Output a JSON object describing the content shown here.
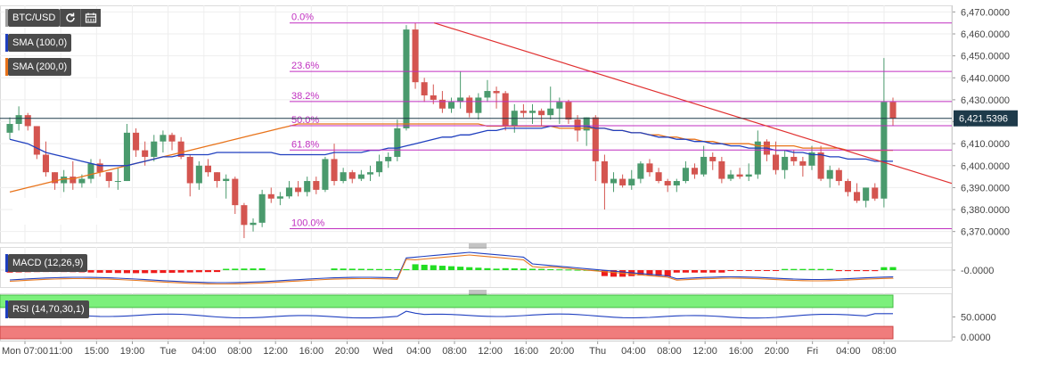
{
  "toolbar": {
    "symbol": "BTC/USD",
    "indicators": [
      {
        "label": "SMA (100,0)",
        "color": "#1f3fbf"
      },
      {
        "label": "SMA (200,0)",
        "color": "#e8731a"
      }
    ],
    "refresh_icon": "refresh-icon",
    "calendar_icon": "calendar-icon"
  },
  "sub_panels": {
    "macd_label": "MACD (12,26,9)",
    "rsi_label": "RSI (14,70,30,1)"
  },
  "chart_data": [
    {
      "type": "candlestick",
      "price_axis_labels": [
        "6,470.0000",
        "6,460.0000",
        "6,450.0000",
        "6,440.0000",
        "6,430.0000",
        "6,420.0000",
        "6,410.0000",
        "6,400.0000",
        "6,390.0000",
        "6,380.0000",
        "6,370.0000"
      ],
      "ylim": [
        6365,
        6473
      ],
      "current_price": "6,421.5396",
      "current_price_value": 6421.54,
      "x_tick_labels": [
        "Mon 07:00",
        "11:00",
        "15:00",
        "19:00",
        "Tue",
        "04:00",
        "08:00",
        "12:00",
        "16:00",
        "20:00",
        "Wed",
        "04:00",
        "08:00",
        "12:00",
        "16:00",
        "20:00",
        "Thu",
        "04:00",
        "08:00",
        "12:00",
        "16:00",
        "20:00",
        "Fri",
        "04:00",
        "08:00"
      ],
      "fibonacci_levels": [
        {
          "label": "0.0%",
          "price": 6465
        },
        {
          "label": "23.6%",
          "price": 6442.9
        },
        {
          "label": "38.2%",
          "price": 6429.2
        },
        {
          "label": "50.0%",
          "price": 6418.2
        },
        {
          "label": "61.8%",
          "price": 6407.1
        },
        {
          "label": "100.0%",
          "price": 6371.3
        }
      ],
      "trendline": [
        {
          "x": 0.4175,
          "price": 6465
        },
        {
          "x": 0.9215,
          "price": 6391
        }
      ],
      "candles": [
        {
          "o": 6415,
          "h": 6422,
          "l": 6412,
          "c": 6419
        },
        {
          "o": 6419,
          "h": 6427,
          "l": 6416,
          "c": 6423
        },
        {
          "o": 6423,
          "h": 6424,
          "l": 6416,
          "c": 6418
        },
        {
          "o": 6418,
          "h": 6418,
          "l": 6403,
          "c": 6405
        },
        {
          "o": 6405,
          "h": 6411,
          "l": 6395,
          "c": 6397
        },
        {
          "o": 6397,
          "h": 6397,
          "l": 6389,
          "c": 6392
        },
        {
          "o": 6392,
          "h": 6398,
          "l": 6388,
          "c": 6395
        },
        {
          "o": 6395,
          "h": 6402,
          "l": 6389,
          "c": 6392
        },
        {
          "o": 6392,
          "h": 6396,
          "l": 6390,
          "c": 6394
        },
        {
          "o": 6394,
          "h": 6403,
          "l": 6392,
          "c": 6401
        },
        {
          "o": 6401,
          "h": 6403,
          "l": 6395,
          "c": 6397
        },
        {
          "o": 6397,
          "h": 6397,
          "l": 6390,
          "c": 6393
        },
        {
          "o": 6393,
          "h": 6399,
          "l": 6389,
          "c": 6393
        },
        {
          "o": 6393,
          "h": 6419,
          "l": 6393,
          "c": 6415
        },
        {
          "o": 6415,
          "h": 6417,
          "l": 6404,
          "c": 6407
        },
        {
          "o": 6407,
          "h": 6411,
          "l": 6400,
          "c": 6404
        },
        {
          "o": 6404,
          "h": 6414,
          "l": 6402,
          "c": 6411
        },
        {
          "o": 6411,
          "h": 6416,
          "l": 6406,
          "c": 6414
        },
        {
          "o": 6414,
          "h": 6415,
          "l": 6407,
          "c": 6411
        },
        {
          "o": 6411,
          "h": 6413,
          "l": 6403,
          "c": 6404
        },
        {
          "o": 6404,
          "h": 6405,
          "l": 6386,
          "c": 6392
        },
        {
          "o": 6392,
          "h": 6402,
          "l": 6389,
          "c": 6400
        },
        {
          "o": 6400,
          "h": 6403,
          "l": 6395,
          "c": 6397
        },
        {
          "o": 6397,
          "h": 6397,
          "l": 6390,
          "c": 6393
        },
        {
          "o": 6393,
          "h": 6396,
          "l": 6385,
          "c": 6394
        },
        {
          "o": 6394,
          "h": 6395,
          "l": 6378,
          "c": 6382
        },
        {
          "o": 6382,
          "h": 6383,
          "l": 6367,
          "c": 6373
        },
        {
          "o": 6373,
          "h": 6376,
          "l": 6370,
          "c": 6374
        },
        {
          "o": 6374,
          "h": 6389,
          "l": 6372,
          "c": 6387
        },
        {
          "o": 6387,
          "h": 6390,
          "l": 6383,
          "c": 6385
        },
        {
          "o": 6385,
          "h": 6388,
          "l": 6382,
          "c": 6386
        },
        {
          "o": 6386,
          "h": 6393,
          "l": 6385,
          "c": 6390
        },
        {
          "o": 6390,
          "h": 6393,
          "l": 6386,
          "c": 6388
        },
        {
          "o": 6388,
          "h": 6395,
          "l": 6386,
          "c": 6393
        },
        {
          "o": 6393,
          "h": 6395,
          "l": 6387,
          "c": 6389
        },
        {
          "o": 6389,
          "h": 6404,
          "l": 6388,
          "c": 6403
        },
        {
          "o": 6403,
          "h": 6410,
          "l": 6391,
          "c": 6393
        },
        {
          "o": 6393,
          "h": 6399,
          "l": 6392,
          "c": 6397
        },
        {
          "o": 6397,
          "h": 6398,
          "l": 6392,
          "c": 6394
        },
        {
          "o": 6394,
          "h": 6398,
          "l": 6393,
          "c": 6396
        },
        {
          "o": 6396,
          "h": 6400,
          "l": 6393,
          "c": 6397
        },
        {
          "o": 6397,
          "h": 6405,
          "l": 6395,
          "c": 6402
        },
        {
          "o": 6402,
          "h": 6406,
          "l": 6399,
          "c": 6404
        },
        {
          "o": 6404,
          "h": 6421,
          "l": 6402,
          "c": 6417
        },
        {
          "o": 6417,
          "h": 6464,
          "l": 6416,
          "c": 6462
        },
        {
          "o": 6462,
          "h": 6465,
          "l": 6435,
          "c": 6438
        },
        {
          "o": 6438,
          "h": 6440,
          "l": 6429,
          "c": 6432
        },
        {
          "o": 6432,
          "h": 6437,
          "l": 6428,
          "c": 6430
        },
        {
          "o": 6430,
          "h": 6434,
          "l": 6424,
          "c": 6426
        },
        {
          "o": 6426,
          "h": 6431,
          "l": 6424,
          "c": 6429
        },
        {
          "o": 6429,
          "h": 6443,
          "l": 6426,
          "c": 6431
        },
        {
          "o": 6431,
          "h": 6432,
          "l": 6422,
          "c": 6424
        },
        {
          "o": 6424,
          "h": 6433,
          "l": 6421,
          "c": 6431
        },
        {
          "o": 6431,
          "h": 6439,
          "l": 6429,
          "c": 6434
        },
        {
          "o": 6434,
          "h": 6436,
          "l": 6426,
          "c": 6433
        },
        {
          "o": 6433,
          "h": 6434,
          "l": 6416,
          "c": 6418
        },
        {
          "o": 6418,
          "h": 6428,
          "l": 6415,
          "c": 6425
        },
        {
          "o": 6425,
          "h": 6428,
          "l": 6422,
          "c": 6424
        },
        {
          "o": 6424,
          "h": 6428,
          "l": 6419,
          "c": 6425
        },
        {
          "o": 6425,
          "h": 6426,
          "l": 6418,
          "c": 6423
        },
        {
          "o": 6423,
          "h": 6436,
          "l": 6421,
          "c": 6426
        },
        {
          "o": 6426,
          "h": 6431,
          "l": 6419,
          "c": 6429
        },
        {
          "o": 6429,
          "h": 6430,
          "l": 6419,
          "c": 6421
        },
        {
          "o": 6421,
          "h": 6423,
          "l": 6411,
          "c": 6416
        },
        {
          "o": 6416,
          "h": 6422,
          "l": 6409,
          "c": 6422
        },
        {
          "o": 6422,
          "h": 6423,
          "l": 6393,
          "c": 6402
        },
        {
          "o": 6402,
          "h": 6405,
          "l": 6380,
          "c": 6392
        },
        {
          "o": 6392,
          "h": 6397,
          "l": 6388,
          "c": 6394
        },
        {
          "o": 6394,
          "h": 6396,
          "l": 6390,
          "c": 6391
        },
        {
          "o": 6391,
          "h": 6398,
          "l": 6389,
          "c": 6394
        },
        {
          "o": 6394,
          "h": 6402,
          "l": 6392,
          "c": 6401
        },
        {
          "o": 6401,
          "h": 6403,
          "l": 6395,
          "c": 6397
        },
        {
          "o": 6397,
          "h": 6399,
          "l": 6392,
          "c": 6393
        },
        {
          "o": 6393,
          "h": 6394,
          "l": 6388,
          "c": 6391
        },
        {
          "o": 6391,
          "h": 6394,
          "l": 6388,
          "c": 6393
        },
        {
          "o": 6393,
          "h": 6402,
          "l": 6392,
          "c": 6399
        },
        {
          "o": 6399,
          "h": 6401,
          "l": 6394,
          "c": 6396
        },
        {
          "o": 6396,
          "h": 6409,
          "l": 6395,
          "c": 6404
        },
        {
          "o": 6404,
          "h": 6406,
          "l": 6398,
          "c": 6402
        },
        {
          "o": 6402,
          "h": 6404,
          "l": 6392,
          "c": 6394
        },
        {
          "o": 6394,
          "h": 6398,
          "l": 6393,
          "c": 6396
        },
        {
          "o": 6396,
          "h": 6399,
          "l": 6394,
          "c": 6395
        },
        {
          "o": 6395,
          "h": 6401,
          "l": 6393,
          "c": 6396
        },
        {
          "o": 6396,
          "h": 6416,
          "l": 6394,
          "c": 6411
        },
        {
          "o": 6411,
          "h": 6412,
          "l": 6402,
          "c": 6405
        },
        {
          "o": 6405,
          "h": 6411,
          "l": 6396,
          "c": 6398
        },
        {
          "o": 6398,
          "h": 6407,
          "l": 6394,
          "c": 6404
        },
        {
          "o": 6404,
          "h": 6407,
          "l": 6400,
          "c": 6402
        },
        {
          "o": 6402,
          "h": 6404,
          "l": 6395,
          "c": 6400
        },
        {
          "o": 6400,
          "h": 6409,
          "l": 6398,
          "c": 6406
        },
        {
          "o": 6406,
          "h": 6409,
          "l": 6393,
          "c": 6394
        },
        {
          "o": 6394,
          "h": 6400,
          "l": 6390,
          "c": 6398
        },
        {
          "o": 6398,
          "h": 6399,
          "l": 6391,
          "c": 6393
        },
        {
          "o": 6393,
          "h": 6394,
          "l": 6386,
          "c": 6388
        },
        {
          "o": 6388,
          "h": 6392,
          "l": 6383,
          "c": 6384
        },
        {
          "o": 6384,
          "h": 6390,
          "l": 6381,
          "c": 6390
        },
        {
          "o": 6390,
          "h": 6392,
          "l": 6384,
          "c": 6385
        },
        {
          "o": 6385,
          "h": 6449,
          "l": 6381,
          "c": 6429
        },
        {
          "o": 6429,
          "h": 6431,
          "l": 6418,
          "c": 6421.54
        }
      ],
      "sma100": [
        6412,
        6411,
        6410,
        6408,
        6406,
        6405,
        6404,
        6403,
        6402,
        6401,
        6400,
        6400,
        6400,
        6400,
        6401,
        6402,
        6403,
        6404,
        6404,
        6405,
        6405,
        6405,
        6405,
        6406,
        6406,
        6406,
        6406,
        6406,
        6406,
        6406,
        6405,
        6405,
        6405,
        6405,
        6405,
        6405,
        6406,
        6406,
        6406,
        6406,
        6407,
        6407,
        6408,
        6408,
        6409,
        6410,
        6411,
        6412,
        6413,
        6413,
        6414,
        6414,
        6415,
        6416,
        6416,
        6417,
        6417,
        6417,
        6417,
        6417,
        6418,
        6418,
        6418,
        6418,
        6418,
        6417,
        6417,
        6416,
        6416,
        6415,
        6415,
        6414,
        6413,
        6413,
        6412,
        6412,
        6411,
        6411,
        6410,
        6410,
        6409,
        6409,
        6408,
        6408,
        6408,
        6407,
        6407,
        6406,
        6406,
        6405,
        6405,
        6404,
        6404,
        6403,
        6403,
        6403,
        6402,
        6402,
        6402
      ],
      "sma200": [
        6388,
        6389,
        6390,
        6391,
        6392,
        6393,
        6394,
        6394,
        6395,
        6396,
        6397,
        6398,
        6399,
        6400,
        6401,
        6402,
        6403,
        6404,
        6405,
        6406,
        6407,
        6408,
        6409,
        6410,
        6411,
        6412,
        6413,
        6414,
        6415,
        6416,
        6417,
        6418,
        6419,
        6419,
        6419,
        6419,
        6419,
        6419,
        6419,
        6419,
        6419,
        6419,
        6419,
        6419,
        6419,
        6419,
        6419,
        6419,
        6419,
        6419,
        6419,
        6419,
        6419,
        6418,
        6418,
        6418,
        6418,
        6418,
        6418,
        6418,
        6418,
        6417,
        6417,
        6417,
        6417,
        6417,
        6417,
        6416,
        6416,
        6415,
        6415,
        6414,
        6414,
        6413,
        6413,
        6412,
        6412,
        6411,
        6411,
        6410,
        6410,
        6410,
        6410,
        6409,
        6409,
        6409,
        6409,
        6409,
        6408,
        6408,
        6408,
        6408,
        6408,
        6407,
        6407,
        6407,
        6407,
        6407,
        6407
      ]
    },
    {
      "type": "bar",
      "name": "MACD (12,26,9)",
      "axis_labels": [
        "-0.0000"
      ]
    },
    {
      "type": "line",
      "name": "RSI (14,70,30,1)",
      "axis_labels": [
        "50.0000",
        "0.0000"
      ],
      "ylim": [
        0,
        100
      ]
    }
  ]
}
